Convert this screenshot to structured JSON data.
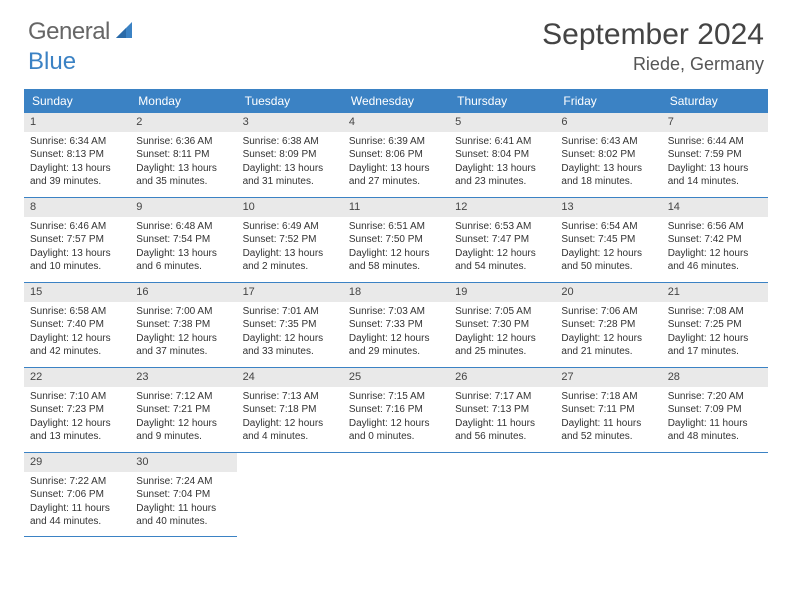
{
  "logo": {
    "text1": "General",
    "text2": "Blue"
  },
  "title": "September 2024",
  "location": "Riede, Germany",
  "header_bg": "#3b82c4",
  "border_color": "#3b82c4",
  "daynum_bg": "#e9e9e9",
  "days": [
    "Sunday",
    "Monday",
    "Tuesday",
    "Wednesday",
    "Thursday",
    "Friday",
    "Saturday"
  ],
  "weeks": [
    [
      {
        "d": "1",
        "sr": "6:34 AM",
        "ss": "8:13 PM",
        "dl": "13 hours and 39 minutes."
      },
      {
        "d": "2",
        "sr": "6:36 AM",
        "ss": "8:11 PM",
        "dl": "13 hours and 35 minutes."
      },
      {
        "d": "3",
        "sr": "6:38 AM",
        "ss": "8:09 PM",
        "dl": "13 hours and 31 minutes."
      },
      {
        "d": "4",
        "sr": "6:39 AM",
        "ss": "8:06 PM",
        "dl": "13 hours and 27 minutes."
      },
      {
        "d": "5",
        "sr": "6:41 AM",
        "ss": "8:04 PM",
        "dl": "13 hours and 23 minutes."
      },
      {
        "d": "6",
        "sr": "6:43 AM",
        "ss": "8:02 PM",
        "dl": "13 hours and 18 minutes."
      },
      {
        "d": "7",
        "sr": "6:44 AM",
        "ss": "7:59 PM",
        "dl": "13 hours and 14 minutes."
      }
    ],
    [
      {
        "d": "8",
        "sr": "6:46 AM",
        "ss": "7:57 PM",
        "dl": "13 hours and 10 minutes."
      },
      {
        "d": "9",
        "sr": "6:48 AM",
        "ss": "7:54 PM",
        "dl": "13 hours and 6 minutes."
      },
      {
        "d": "10",
        "sr": "6:49 AM",
        "ss": "7:52 PM",
        "dl": "13 hours and 2 minutes."
      },
      {
        "d": "11",
        "sr": "6:51 AM",
        "ss": "7:50 PM",
        "dl": "12 hours and 58 minutes."
      },
      {
        "d": "12",
        "sr": "6:53 AM",
        "ss": "7:47 PM",
        "dl": "12 hours and 54 minutes."
      },
      {
        "d": "13",
        "sr": "6:54 AM",
        "ss": "7:45 PM",
        "dl": "12 hours and 50 minutes."
      },
      {
        "d": "14",
        "sr": "6:56 AM",
        "ss": "7:42 PM",
        "dl": "12 hours and 46 minutes."
      }
    ],
    [
      {
        "d": "15",
        "sr": "6:58 AM",
        "ss": "7:40 PM",
        "dl": "12 hours and 42 minutes."
      },
      {
        "d": "16",
        "sr": "7:00 AM",
        "ss": "7:38 PM",
        "dl": "12 hours and 37 minutes."
      },
      {
        "d": "17",
        "sr": "7:01 AM",
        "ss": "7:35 PM",
        "dl": "12 hours and 33 minutes."
      },
      {
        "d": "18",
        "sr": "7:03 AM",
        "ss": "7:33 PM",
        "dl": "12 hours and 29 minutes."
      },
      {
        "d": "19",
        "sr": "7:05 AM",
        "ss": "7:30 PM",
        "dl": "12 hours and 25 minutes."
      },
      {
        "d": "20",
        "sr": "7:06 AM",
        "ss": "7:28 PM",
        "dl": "12 hours and 21 minutes."
      },
      {
        "d": "21",
        "sr": "7:08 AM",
        "ss": "7:25 PM",
        "dl": "12 hours and 17 minutes."
      }
    ],
    [
      {
        "d": "22",
        "sr": "7:10 AM",
        "ss": "7:23 PM",
        "dl": "12 hours and 13 minutes."
      },
      {
        "d": "23",
        "sr": "7:12 AM",
        "ss": "7:21 PM",
        "dl": "12 hours and 9 minutes."
      },
      {
        "d": "24",
        "sr": "7:13 AM",
        "ss": "7:18 PM",
        "dl": "12 hours and 4 minutes."
      },
      {
        "d": "25",
        "sr": "7:15 AM",
        "ss": "7:16 PM",
        "dl": "12 hours and 0 minutes."
      },
      {
        "d": "26",
        "sr": "7:17 AM",
        "ss": "7:13 PM",
        "dl": "11 hours and 56 minutes."
      },
      {
        "d": "27",
        "sr": "7:18 AM",
        "ss": "7:11 PM",
        "dl": "11 hours and 52 minutes."
      },
      {
        "d": "28",
        "sr": "7:20 AM",
        "ss": "7:09 PM",
        "dl": "11 hours and 48 minutes."
      }
    ],
    [
      {
        "d": "29",
        "sr": "7:22 AM",
        "ss": "7:06 PM",
        "dl": "11 hours and 44 minutes."
      },
      {
        "d": "30",
        "sr": "7:24 AM",
        "ss": "7:04 PM",
        "dl": "11 hours and 40 minutes."
      },
      null,
      null,
      null,
      null,
      null
    ]
  ],
  "labels": {
    "sunrise": "Sunrise:",
    "sunset": "Sunset:",
    "daylight": "Daylight:"
  }
}
